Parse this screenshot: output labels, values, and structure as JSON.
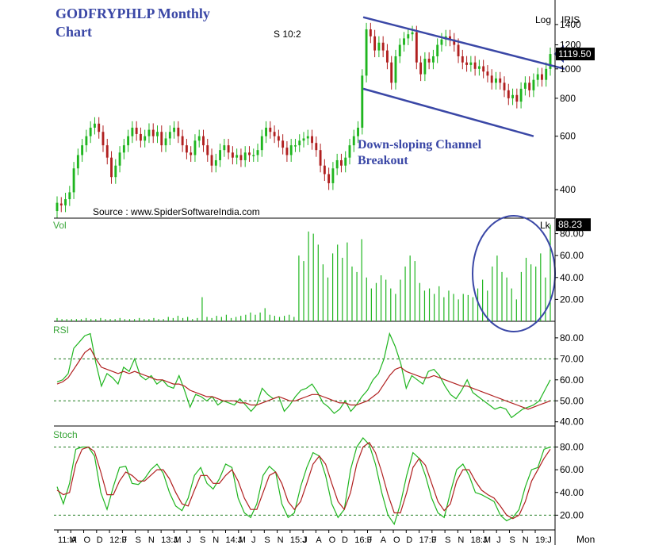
{
  "chart_data": [
    {
      "panel": "price",
      "type": "candlestick",
      "title": "GODFRYPHLP Monthly Chart",
      "status_text": "S 10:2",
      "source": "Source : www.SpiderSoftwareIndia.com",
      "scale": "log",
      "scale_label": "Log",
      "symbol": "IRIS",
      "last_price": "1119.50",
      "ylim": [
        330,
        1550
      ],
      "ticks": [
        "1400",
        "1200",
        "1000",
        "800",
        "600",
        "400"
      ],
      "annotation": "Down-sloping Channel Breakout",
      "candles": [
        [
          340,
          362
        ],
        [
          360,
          355
        ],
        [
          355,
          372
        ],
        [
          372,
          392
        ],
        [
          392,
          470
        ],
        [
          470,
          520
        ],
        [
          520,
          560
        ],
        [
          560,
          600
        ],
        [
          600,
          640
        ],
        [
          640,
          660
        ],
        [
          660,
          620
        ],
        [
          620,
          560
        ],
        [
          560,
          510
        ],
        [
          510,
          440
        ],
        [
          440,
          480
        ],
        [
          480,
          530
        ],
        [
          530,
          560
        ],
        [
          560,
          600
        ],
        [
          600,
          640
        ],
        [
          640,
          610
        ],
        [
          610,
          580
        ],
        [
          580,
          600
        ],
        [
          600,
          630
        ],
        [
          630,
          600
        ],
        [
          600,
          620
        ],
        [
          620,
          560
        ],
        [
          560,
          590
        ],
        [
          590,
          620
        ],
        [
          620,
          640
        ],
        [
          640,
          600
        ],
        [
          600,
          560
        ],
        [
          560,
          530
        ],
        [
          530,
          520
        ],
        [
          520,
          580
        ],
        [
          580,
          600
        ],
        [
          600,
          560
        ],
        [
          560,
          520
        ],
        [
          520,
          480
        ],
        [
          480,
          500
        ],
        [
          500,
          540
        ],
        [
          540,
          560
        ],
        [
          560,
          530
        ],
        [
          530,
          510
        ],
        [
          510,
          520
        ],
        [
          520,
          500
        ],
        [
          500,
          530
        ],
        [
          530,
          520
        ],
        [
          520,
          520
        ],
        [
          520,
          540
        ],
        [
          540,
          600
        ],
        [
          600,
          640
        ],
        [
          640,
          620
        ],
        [
          620,
          600
        ],
        [
          600,
          580
        ],
        [
          580,
          550
        ],
        [
          550,
          520
        ],
        [
          520,
          560
        ],
        [
          560,
          560
        ],
        [
          560,
          580
        ],
        [
          580,
          590
        ],
        [
          590,
          600
        ],
        [
          600,
          570
        ],
        [
          570,
          540
        ],
        [
          540,
          480
        ],
        [
          480,
          450
        ],
        [
          450,
          420
        ],
        [
          420,
          470
        ],
        [
          470,
          500
        ],
        [
          500,
          480
        ],
        [
          480,
          510
        ],
        [
          510,
          560
        ],
        [
          560,
          600
        ],
        [
          600,
          640
        ],
        [
          640,
          950
        ],
        [
          950,
          1350
        ],
        [
          1350,
          1280
        ],
        [
          1280,
          1150
        ],
        [
          1150,
          1220
        ],
        [
          1220,
          1150
        ],
        [
          1150,
          1050
        ],
        [
          1050,
          900
        ],
        [
          900,
          1100
        ],
        [
          1100,
          1200
        ],
        [
          1200,
          1260
        ],
        [
          1260,
          1300
        ],
        [
          1300,
          1320
        ],
        [
          1320,
          1050
        ],
        [
          1050,
          960
        ],
        [
          960,
          1080
        ],
        [
          1080,
          1050
        ],
        [
          1050,
          1100
        ],
        [
          1100,
          1200
        ],
        [
          1200,
          1250
        ],
        [
          1250,
          1280
        ],
        [
          1280,
          1250
        ],
        [
          1250,
          1200
        ],
        [
          1200,
          1100
        ],
        [
          1100,
          1050
        ],
        [
          1050,
          1030
        ],
        [
          1030,
          1050
        ],
        [
          1050,
          1000
        ],
        [
          1000,
          1020
        ],
        [
          1020,
          980
        ],
        [
          980,
          950
        ],
        [
          950,
          900
        ],
        [
          900,
          930
        ],
        [
          930,
          900
        ],
        [
          900,
          850
        ],
        [
          850,
          800
        ],
        [
          800,
          820
        ],
        [
          820,
          780
        ],
        [
          780,
          860
        ],
        [
          860,
          900
        ],
        [
          900,
          850
        ],
        [
          850,
          920
        ],
        [
          920,
          960
        ],
        [
          960,
          920
        ],
        [
          920,
          1000
        ],
        [
          1000,
          1119.5
        ]
      ]
    },
    {
      "panel": "volume",
      "type": "bar",
      "title": "Vol",
      "unit": "Lk",
      "last_value": "88.23",
      "ylim": [
        0,
        92
      ],
      "ticks": [
        "80.00",
        "60.00",
        "40.00",
        "20.00"
      ],
      "values": [
        3,
        2,
        2,
        2,
        2,
        2,
        3,
        2,
        2,
        3,
        2,
        2,
        2,
        3,
        2,
        2,
        2,
        3,
        2,
        2,
        3,
        2,
        2,
        4,
        3,
        5,
        3,
        4,
        2,
        3,
        22,
        4,
        3,
        5,
        4,
        6,
        3,
        4,
        5,
        6,
        8,
        6,
        8,
        12,
        6,
        5,
        4,
        5,
        6,
        4,
        60,
        55,
        82,
        80,
        70,
        52,
        40,
        62,
        70,
        58,
        72,
        50,
        45,
        75,
        40,
        30,
        35,
        42,
        38,
        30,
        25,
        38,
        50,
        60,
        55,
        35,
        28,
        30,
        25,
        32,
        22,
        28,
        25,
        20,
        25,
        24,
        22,
        30,
        38,
        28,
        50,
        60,
        45,
        40,
        30,
        20,
        45,
        58,
        52,
        50,
        62,
        40,
        88.23
      ]
    },
    {
      "panel": "rsi",
      "type": "line",
      "title": "RSI",
      "ylim": [
        38,
        86
      ],
      "ticks": [
        "80.00",
        "70.00",
        "60.00",
        "50.00",
        "40.00"
      ],
      "levels": [
        70,
        50
      ],
      "series": [
        {
          "color": "#1fb51f",
          "values": [
            59,
            60,
            63,
            75,
            78,
            81,
            82,
            68,
            57,
            63,
            61,
            58,
            66,
            64,
            70,
            62,
            60,
            62,
            58,
            60,
            57,
            56,
            62,
            55,
            47,
            53,
            52,
            50,
            52,
            48,
            50,
            49,
            48,
            51,
            48,
            45,
            48,
            56,
            53,
            51,
            52,
            45,
            48,
            52,
            55,
            56,
            58,
            54,
            49,
            47,
            44,
            46,
            50,
            45,
            48,
            52,
            55,
            60,
            63,
            70,
            82,
            76,
            68,
            56,
            62,
            60,
            58,
            64,
            65,
            62,
            57,
            53,
            51,
            55,
            60,
            54,
            52,
            50,
            48,
            46,
            47,
            46,
            42,
            44,
            46,
            47,
            48,
            50,
            55,
            60
          ]
        },
        {
          "color": "#b01f1f",
          "values": [
            58,
            59,
            61,
            65,
            69,
            73,
            75,
            70,
            66,
            65,
            64,
            63,
            64,
            63,
            64,
            63,
            62,
            61,
            60,
            60,
            59,
            58,
            58,
            57,
            55,
            54,
            53,
            52,
            52,
            51,
            50,
            50,
            50,
            49,
            49,
            48,
            48,
            49,
            50,
            51,
            52,
            51,
            50,
            50,
            51,
            52,
            53,
            53,
            52,
            51,
            50,
            49,
            49,
            48,
            48,
            49,
            50,
            52,
            54,
            58,
            62,
            65,
            66,
            64,
            63,
            62,
            61,
            61,
            62,
            61,
            60,
            59,
            58,
            57,
            57,
            56,
            55,
            54,
            53,
            52,
            51,
            50,
            49,
            48,
            47,
            46,
            47,
            48,
            49,
            50
          ]
        }
      ]
    },
    {
      "panel": "stoch",
      "type": "line",
      "title": "Stoch",
      "xlabel": "Mon",
      "ylim": [
        7,
        95
      ],
      "ticks": [
        "80.00",
        "60.00",
        "40.00",
        "20.00"
      ],
      "levels": [
        80,
        20
      ],
      "x_tick_labels": [
        "11:M",
        "A",
        "O",
        "D",
        "12:F",
        "J",
        "S",
        "N",
        "13:J",
        "M",
        "J",
        "S",
        "N",
        "14:J",
        "M",
        "J",
        "S",
        "N",
        "15:J",
        "J",
        "A",
        "O",
        "D",
        "16:F",
        "J",
        "A",
        "O",
        "D",
        "17:F",
        "J",
        "S",
        "N",
        "18:J",
        "M",
        "J",
        "S",
        "N",
        "19:J"
      ],
      "series": [
        {
          "color": "#1fb51f",
          "values": [
            45,
            30,
            48,
            78,
            80,
            80,
            72,
            40,
            25,
            45,
            62,
            63,
            48,
            47,
            52,
            60,
            65,
            57,
            40,
            28,
            24,
            35,
            55,
            62,
            48,
            43,
            52,
            65,
            62,
            35,
            22,
            18,
            30,
            55,
            63,
            58,
            30,
            18,
            22,
            45,
            62,
            75,
            72,
            55,
            30,
            18,
            25,
            60,
            80,
            88,
            82,
            65,
            40,
            20,
            12,
            30,
            55,
            75,
            70,
            55,
            35,
            22,
            18,
            40,
            60,
            65,
            55,
            40,
            38,
            35,
            32,
            20,
            15,
            18,
            25,
            45,
            60,
            62,
            78,
            80
          ]
        },
        {
          "color": "#b01f1f",
          "values": [
            42,
            38,
            40,
            65,
            78,
            80,
            76,
            58,
            38,
            38,
            50,
            58,
            55,
            50,
            50,
            55,
            60,
            60,
            52,
            40,
            30,
            28,
            42,
            55,
            55,
            48,
            48,
            55,
            60,
            50,
            35,
            25,
            25,
            40,
            55,
            58,
            48,
            32,
            25,
            32,
            48,
            65,
            72,
            65,
            48,
            32,
            25,
            40,
            65,
            80,
            84,
            75,
            58,
            38,
            22,
            22,
            40,
            62,
            70,
            64,
            48,
            32,
            24,
            30,
            50,
            60,
            60,
            50,
            42,
            38,
            35,
            28,
            20,
            17,
            20,
            32,
            50,
            60,
            70,
            78
          ]
        }
      ]
    }
  ],
  "colors": {
    "bull": "#1fb51f",
    "bear": "#b01f1f",
    "channel": "#3a47a6",
    "grid_line": "#1f7a1f",
    "axis": "#000000"
  }
}
